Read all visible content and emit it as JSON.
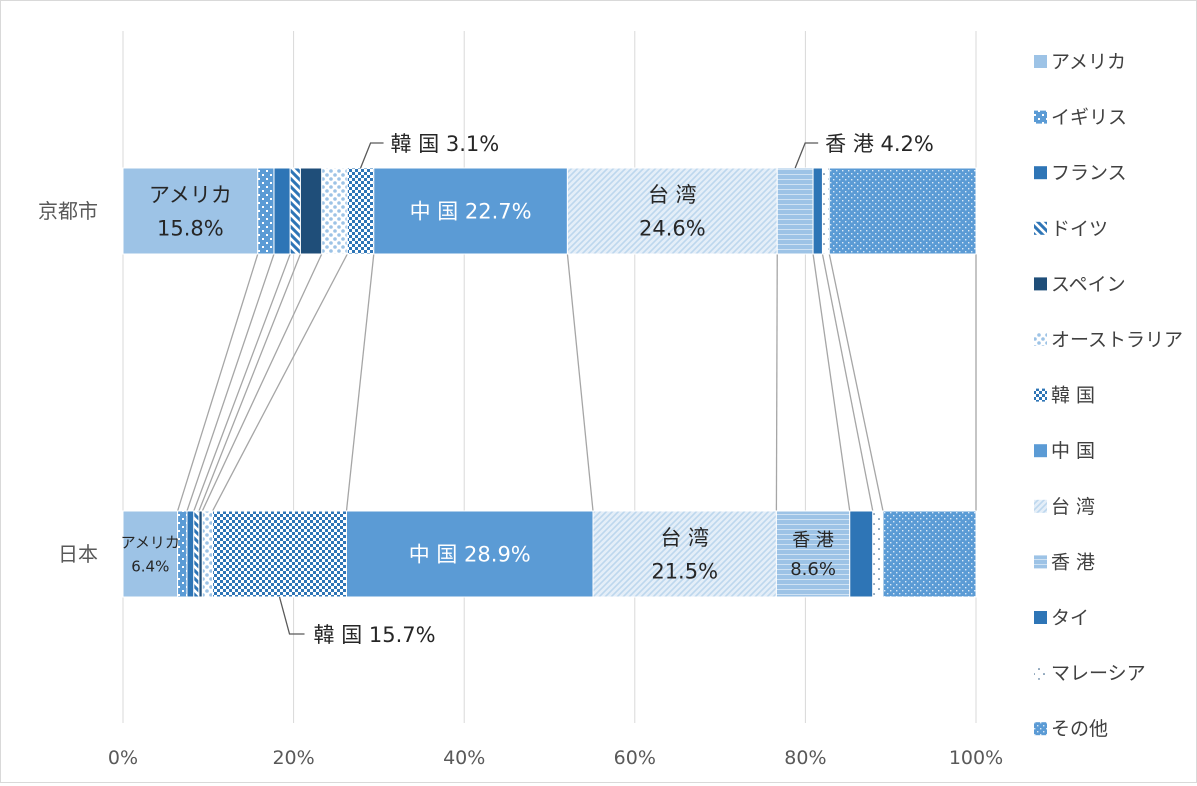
{
  "chart_data": {
    "type": "bar",
    "orientation": "horizontal",
    "stacked": "percent",
    "categories": [
      "京都市",
      "日本"
    ],
    "xlim": [
      0,
      100
    ],
    "x_ticks": [
      "0%",
      "20%",
      "40%",
      "60%",
      "80%",
      "100%"
    ],
    "grid": true,
    "legend_position": "right",
    "series": [
      {
        "name": "アメリカ",
        "values": [
          15.8,
          6.4
        ],
        "color": "#9dc3e6",
        "pattern": "solid"
      },
      {
        "name": "イギリス",
        "values": [
          1.9,
          1.1
        ],
        "color": "#5b9bd5",
        "pattern": "grid"
      },
      {
        "name": "フランス",
        "values": [
          1.9,
          0.8
        ],
        "color": "#2e75b6",
        "pattern": "solid"
      },
      {
        "name": "ドイツ",
        "values": [
          1.2,
          0.6
        ],
        "color": "#2e75b6",
        "pattern": "wdiag"
      },
      {
        "name": "スペイン",
        "values": [
          2.5,
          0.4
        ],
        "color": "#1f4e79",
        "pattern": "solid"
      },
      {
        "name": "オーストラリア",
        "values": [
          3.0,
          1.2
        ],
        "color": "#9dc3e6",
        "pattern": "sphere"
      },
      {
        "name": "韓 国",
        "values": [
          3.1,
          15.7
        ],
        "color": "#2e75b6",
        "pattern": "check"
      },
      {
        "name": "中 国",
        "values": [
          22.7,
          28.9
        ],
        "color": "#5b9bd5",
        "pattern": "solid"
      },
      {
        "name": "台 湾",
        "values": [
          24.6,
          21.5
        ],
        "color": "#bdd7ee",
        "pattern": "ldiag"
      },
      {
        "name": "香 港",
        "values": [
          4.2,
          8.6
        ],
        "color": "#9dc3e6",
        "pattern": "hlines"
      },
      {
        "name": "タイ",
        "values": [
          1.1,
          2.7
        ],
        "color": "#2e75b6",
        "pattern": "solid"
      },
      {
        "name": "マレーシア",
        "values": [
          0.8,
          1.2
        ],
        "color": "#1f4e79",
        "pattern": "dots"
      },
      {
        "name": "その他",
        "values": [
          17.2,
          10.9
        ],
        "color": "#5b9bd5",
        "pattern": "smallgrid"
      }
    ],
    "annotations": [
      {
        "cat": 0,
        "series": 0,
        "lines": [
          "アメリカ",
          "15.8%"
        ],
        "mode": "inside",
        "size": "large"
      },
      {
        "cat": 0,
        "series": 7,
        "lines": [
          "中 国 22.7%"
        ],
        "mode": "inside",
        "size": "large"
      },
      {
        "cat": 0,
        "series": 8,
        "lines": [
          "台 湾",
          "24.6%"
        ],
        "mode": "inside",
        "size": "large"
      },
      {
        "cat": 0,
        "series": 6,
        "lines": [
          "韓 国 3.1%"
        ],
        "mode": "callout-above"
      },
      {
        "cat": 0,
        "series": 9,
        "lines": [
          "香 港 4.2%"
        ],
        "mode": "callout-above"
      },
      {
        "cat": 1,
        "series": 0,
        "lines": [
          "アメリカ",
          "6.4%"
        ],
        "mode": "inside",
        "size": "small"
      },
      {
        "cat": 1,
        "series": 7,
        "lines": [
          "中 国 28.9%"
        ],
        "mode": "inside",
        "size": "large"
      },
      {
        "cat": 1,
        "series": 8,
        "lines": [
          "台 湾",
          "21.5%"
        ],
        "mode": "inside",
        "size": "large"
      },
      {
        "cat": 1,
        "series": 9,
        "lines": [
          "香 港",
          "8.6%"
        ],
        "mode": "inside",
        "size": "medium"
      },
      {
        "cat": 1,
        "series": 6,
        "lines": [
          "韓 国 15.7%"
        ],
        "mode": "callout-below"
      }
    ]
  }
}
